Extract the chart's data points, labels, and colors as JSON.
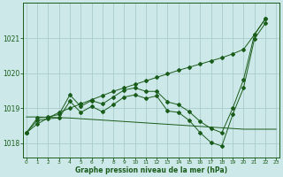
{
  "title": "Graphe pression niveau de la mer (hPa)",
  "bg_color": "#cce8e8",
  "grid_color": "#aacccc",
  "line_color": "#1a5c1a",
  "x_ticks": [
    0,
    1,
    2,
    3,
    4,
    5,
    6,
    7,
    8,
    9,
    10,
    11,
    12,
    13,
    14,
    15,
    16,
    17,
    18,
    19,
    20,
    21,
    22,
    23
  ],
  "y_ticks": [
    1018,
    1019,
    1020,
    1021
  ],
  "ylim": [
    1017.6,
    1022.0
  ],
  "xlim": [
    -0.3,
    23.3
  ],
  "line_diag": [
    1018.3,
    1018.55,
    1018.72,
    1018.88,
    1019.0,
    1019.12,
    1019.24,
    1019.36,
    1019.48,
    1019.58,
    1019.68,
    1019.78,
    1019.88,
    1019.98,
    1020.08,
    1020.17,
    1020.26,
    1020.35,
    1020.44,
    1020.55,
    1020.68,
    1021.1,
    1021.55
  ],
  "line_up": [
    1018.3,
    1018.72,
    1018.75,
    1018.82,
    1019.38,
    1019.05,
    1019.22,
    1019.12,
    1019.32,
    1019.52,
    1019.58,
    1019.48,
    1019.48,
    1019.18,
    1019.1,
    1018.9,
    1018.62,
    1018.42,
    1018.3,
    1019.0,
    1019.82,
    1021.1,
    1021.55
  ],
  "line_dn": [
    1018.3,
    1018.65,
    1018.7,
    1018.72,
    1019.2,
    1018.88,
    1019.05,
    1018.9,
    1019.1,
    1019.32,
    1019.38,
    1019.28,
    1019.35,
    1018.92,
    1018.88,
    1018.65,
    1018.3,
    1018.02,
    1017.92,
    1018.82,
    1019.58,
    1020.98,
    1021.42
  ],
  "line_flat": [
    1018.75,
    1018.75,
    1018.74,
    1018.73,
    1018.72,
    1018.7,
    1018.68,
    1018.66,
    1018.64,
    1018.62,
    1018.6,
    1018.58,
    1018.56,
    1018.54,
    1018.52,
    1018.5,
    1018.48,
    1018.46,
    1018.44,
    1018.42,
    1018.4,
    1018.4,
    1018.4,
    1018.4
  ]
}
